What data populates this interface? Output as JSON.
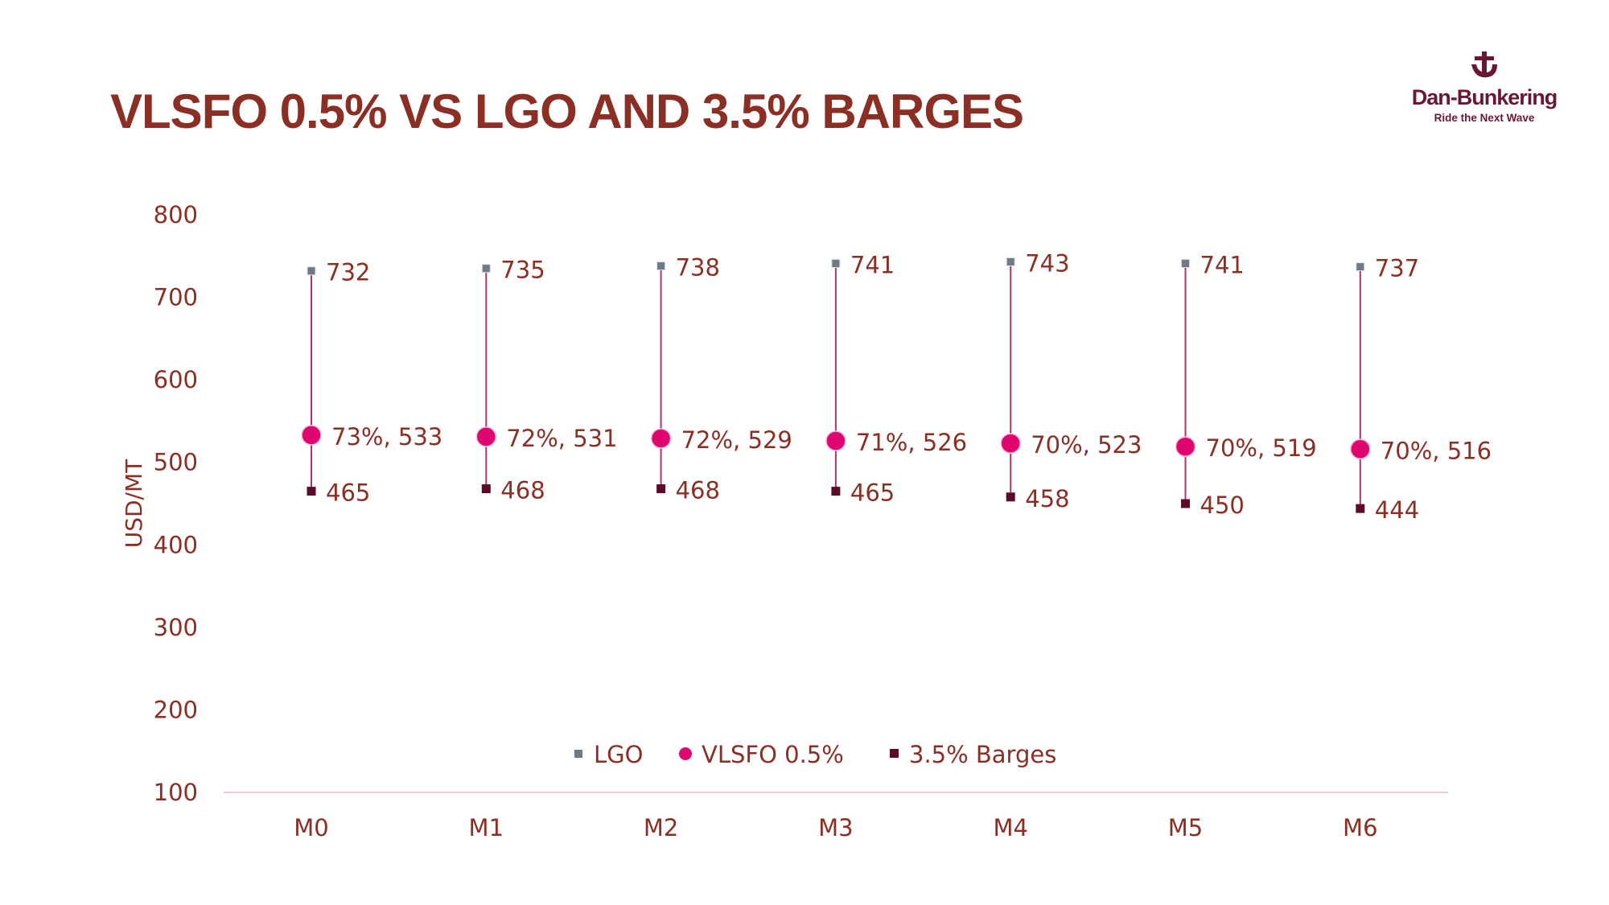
{
  "title": "VLSFO 0.5% VS LGO AND 3.5% BARGES",
  "logo": {
    "brand": "Dan-Bunkering",
    "tagline": "Ride the Next Wave"
  },
  "colors": {
    "title": "#8B2E23",
    "lgo": "#6E7B84",
    "vlsfo": "#E0066F",
    "barges": "#5C0A2A",
    "line": "#B0336E",
    "axis": "#F2C9D6"
  },
  "chart_data": {
    "type": "scatter",
    "title": "VLSFO 0.5% VS LGO AND 3.5% BARGES",
    "ylabel": "USD/MT",
    "xlabel": "",
    "ylim": [
      100,
      800
    ],
    "yticks": [
      "100",
      "200",
      "300",
      "400",
      "500",
      "600",
      "700",
      "800"
    ],
    "categories": [
      "M0",
      "M1",
      "M2",
      "M3",
      "M4",
      "M5",
      "M6"
    ],
    "legend_position": "bottom-center",
    "grid": false,
    "series": [
      {
        "name": "LGO",
        "marker": "square",
        "values": [
          732,
          735,
          738,
          741,
          743,
          741,
          737
        ],
        "labels": [
          "732",
          "735",
          "738",
          "741",
          "743",
          "741",
          "737"
        ]
      },
      {
        "name": "VLSFO 0.5%",
        "marker": "circle",
        "values": [
          533,
          531,
          529,
          526,
          523,
          519,
          516
        ],
        "labels": [
          "73%, 533",
          "72%, 531",
          "72%, 529",
          "71%, 526",
          "70%, 523",
          "70%, 519",
          "70%, 516"
        ]
      },
      {
        "name": "3.5% Barges",
        "marker": "square",
        "values": [
          465,
          468,
          468,
          465,
          458,
          450,
          444
        ],
        "labels": [
          "465",
          "468",
          "468",
          "465",
          "458",
          "450",
          "444"
        ]
      }
    ]
  }
}
